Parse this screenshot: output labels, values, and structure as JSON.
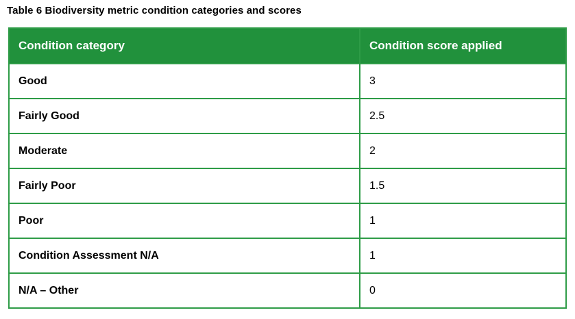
{
  "title": "Table 6 Biodiversity metric condition categories and scores",
  "table": {
    "columns": [
      "Condition category",
      "Condition score applied"
    ],
    "rows": [
      {
        "category": "Good",
        "score": "3"
      },
      {
        "category": "Fairly Good",
        "score": "2.5"
      },
      {
        "category": "Moderate",
        "score": "2"
      },
      {
        "category": "Fairly Poor",
        "score": "1.5"
      },
      {
        "category": "Poor",
        "score": "1"
      },
      {
        "category": "Condition Assessment N/A",
        "score": "1"
      },
      {
        "category": "N/A – Other",
        "score": "0"
      }
    ]
  },
  "colors": {
    "header_bg": "#21913C",
    "border": "#2E9C47",
    "header_text": "#FFFFFF",
    "body_text": "#000000"
  }
}
